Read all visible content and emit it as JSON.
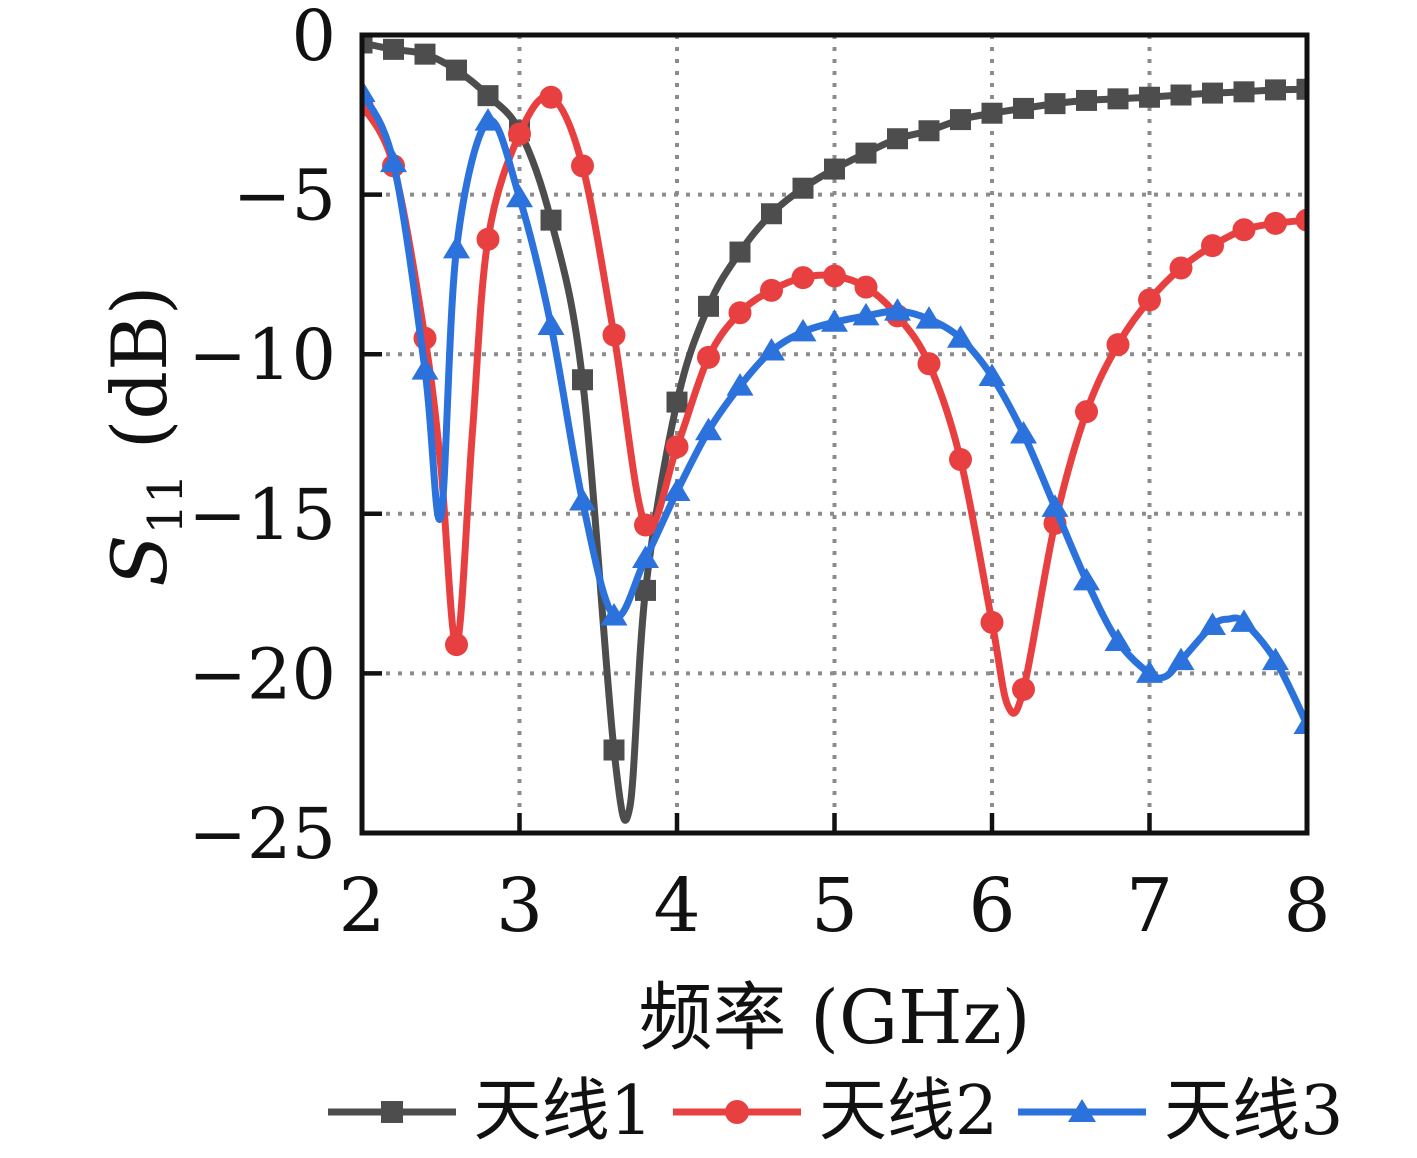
{
  "figure": {
    "background": "#ffffff",
    "frame_color": "#111111",
    "tick_color": "#111111"
  },
  "chart_data": {
    "type": "line",
    "title": "",
    "xlabel": "频率 (GHz)",
    "ylabel": "S11 (dB)",
    "ylabel_parts": {
      "var": "S",
      "sub": "11",
      "unit": "(dB)"
    },
    "xlim": [
      2,
      8
    ],
    "ylim": [
      -25,
      0
    ],
    "xticks": [
      2,
      3,
      4,
      5,
      6,
      7,
      8
    ],
    "xtick_labels": [
      "2",
      "3",
      "4",
      "5",
      "6",
      "7",
      "8"
    ],
    "yticks": [
      0,
      -5,
      -10,
      -15,
      -20,
      -25
    ],
    "ytick_labels": [
      "0",
      "−5",
      "−10",
      "−15",
      "−20",
      "−25"
    ],
    "grid": {
      "show": true,
      "style": "dotted",
      "color": "#8c8c8c"
    },
    "legend_position": "bottom",
    "marker_spacing_ghz": 0.2,
    "series": [
      {
        "key": "antenna-1",
        "name": "天线1",
        "color": "#4d4d4d",
        "marker": "square",
        "x": [
          2.0,
          2.2,
          2.4,
          2.6,
          2.8,
          3.0,
          3.2,
          3.4,
          3.6,
          3.7,
          3.8,
          4.0,
          4.2,
          4.4,
          4.6,
          4.8,
          5.0,
          5.2,
          5.4,
          5.6,
          5.8,
          6.0,
          6.2,
          6.4,
          6.6,
          6.8,
          7.0,
          7.2,
          7.4,
          7.6,
          7.8,
          8.0
        ],
        "y": [
          -0.25,
          -0.45,
          -0.6,
          -1.1,
          -1.9,
          -3.0,
          -5.8,
          -10.8,
          -22.4,
          -24.2,
          -17.4,
          -11.5,
          -8.5,
          -6.8,
          -5.6,
          -4.8,
          -4.2,
          -3.7,
          -3.25,
          -3.0,
          -2.65,
          -2.45,
          -2.3,
          -2.15,
          -2.05,
          -2.0,
          -1.95,
          -1.88,
          -1.82,
          -1.78,
          -1.72,
          -1.7
        ]
      },
      {
        "key": "antenna-2",
        "name": "天线2",
        "color": "#e84040",
        "marker": "circle",
        "x": [
          2.0,
          2.2,
          2.4,
          2.5,
          2.6,
          2.7,
          2.8,
          3.0,
          3.2,
          3.4,
          3.6,
          3.8,
          4.0,
          4.2,
          4.4,
          4.6,
          4.8,
          5.0,
          5.2,
          5.4,
          5.6,
          5.8,
          6.0,
          6.1,
          6.2,
          6.4,
          6.6,
          6.8,
          7.0,
          7.2,
          7.4,
          7.6,
          7.8,
          8.0
        ],
        "y": [
          -2.2,
          -4.1,
          -9.5,
          -13.5,
          -19.1,
          -12.5,
          -6.4,
          -3.1,
          -1.95,
          -4.1,
          -9.4,
          -15.35,
          -12.9,
          -10.1,
          -8.7,
          -8.0,
          -7.6,
          -7.55,
          -7.9,
          -8.8,
          -10.3,
          -13.3,
          -18.4,
          -21.0,
          -20.5,
          -15.3,
          -11.8,
          -9.7,
          -8.3,
          -7.3,
          -6.6,
          -6.1,
          -5.9,
          -5.8
        ]
      },
      {
        "key": "antenna-3",
        "name": "天线3",
        "color": "#2b72dc",
        "marker": "triangle",
        "x": [
          2.0,
          2.2,
          2.4,
          2.5,
          2.6,
          2.8,
          3.0,
          3.2,
          3.4,
          3.6,
          3.8,
          4.0,
          4.2,
          4.4,
          4.6,
          4.8,
          5.0,
          5.2,
          5.4,
          5.6,
          5.8,
          6.0,
          6.2,
          6.4,
          6.6,
          6.8,
          7.0,
          7.1,
          7.2,
          7.4,
          7.5,
          7.6,
          7.8,
          8.0
        ],
        "y": [
          -1.8,
          -4.0,
          -10.5,
          -15.1,
          -6.7,
          -2.7,
          -5.1,
          -9.1,
          -14.6,
          -18.2,
          -16.4,
          -14.3,
          -12.4,
          -11.0,
          -9.9,
          -9.3,
          -9.0,
          -8.8,
          -8.65,
          -8.9,
          -9.5,
          -10.7,
          -12.5,
          -14.8,
          -17.1,
          -19.0,
          -20.0,
          -20.1,
          -19.6,
          -18.5,
          -18.3,
          -18.4,
          -19.6,
          -21.6
        ]
      }
    ]
  }
}
